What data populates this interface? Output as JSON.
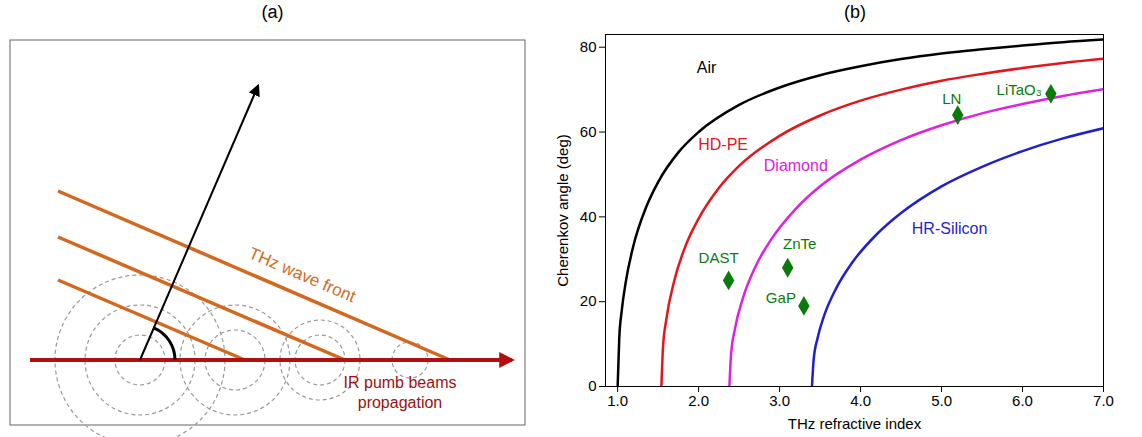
{
  "panel_a": {
    "title": "(a)",
    "wave_front_label": "THz wave front",
    "pump_label": "IR pumb beams propagation"
  },
  "chart_data": {
    "type": "line",
    "title": "(b)",
    "x_label": "THz refractive index",
    "y_label": "Cherenkov angle (deg)",
    "xlim": [
      0.85,
      7
    ],
    "ylim": [
      0,
      83
    ],
    "xticks": [
      1,
      2,
      3,
      4,
      5,
      6,
      7
    ],
    "yticks": [
      0,
      20,
      40,
      60,
      80
    ],
    "series": [
      {
        "name": "Air",
        "color": "#000000",
        "x": [
          1,
          1.02,
          1.05,
          1.1,
          1.2,
          1.35,
          1.5,
          1.75,
          2,
          2.5,
          3,
          3.5,
          4,
          4.5,
          5,
          5.5,
          6,
          6.5,
          7
        ],
        "values": [
          0,
          11.4,
          17.8,
          24.6,
          33.6,
          42.2,
          48.2,
          55.2,
          60,
          66.4,
          70.5,
          73.4,
          75.5,
          77.2,
          78.5,
          79.5,
          80.4,
          81.2,
          81.8
        ]
      },
      {
        "name": "HD-PE",
        "color": "#e8141c",
        "x": [
          1.54,
          1.56,
          1.6,
          1.7,
          1.85,
          2,
          2.25,
          2.5,
          3,
          3.5,
          4,
          4.5,
          5,
          5.5,
          6,
          6.5,
          7
        ],
        "values": [
          0,
          9.2,
          15.7,
          25.0,
          33.7,
          39.6,
          46.8,
          52.0,
          59.1,
          63.9,
          67.4,
          70.0,
          72.1,
          73.7,
          75.1,
          76.3,
          77.3
        ]
      },
      {
        "name": "Diamond",
        "color": "#e020e0",
        "x": [
          2.38,
          2.4,
          2.45,
          2.55,
          2.7,
          2.9,
          3.2,
          3.5,
          4,
          4.5,
          5,
          5.5,
          6,
          6.5,
          7
        ],
        "values": [
          0,
          7.4,
          13.7,
          21.0,
          28.2,
          34.8,
          41.9,
          47.2,
          53.5,
          58.1,
          61.6,
          64.4,
          66.6,
          68.5,
          70.1
        ]
      },
      {
        "name": "HR-Silicon",
        "color": "#1f1fd0",
        "x": [
          3.4,
          3.42,
          3.47,
          3.55,
          3.7,
          3.9,
          4.2,
          4.5,
          5,
          5.5,
          6,
          6.5,
          7
        ],
        "values": [
          0,
          6.2,
          11.5,
          16.7,
          23.2,
          29.3,
          35.9,
          40.9,
          47.2,
          51.8,
          55.5,
          58.5,
          60.9
        ]
      }
    ],
    "points": {
      "type": "scatter",
      "marker": "diamond",
      "color": "#0a7a0a",
      "labels": [
        "DAST",
        "ZnTe",
        "GaP",
        "LN",
        "LiTaO₃"
      ],
      "x": [
        2.37,
        3.1,
        3.3,
        5.2,
        6.35
      ],
      "values": [
        25,
        28,
        19,
        64,
        69
      ]
    }
  }
}
